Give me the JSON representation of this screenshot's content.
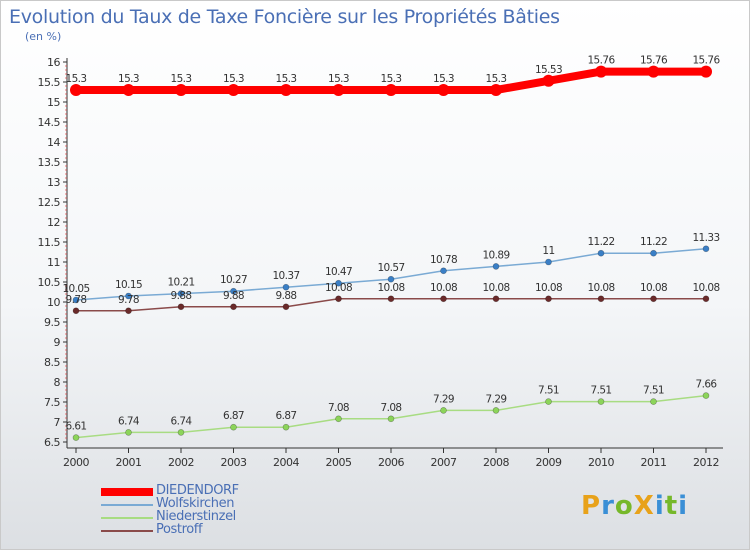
{
  "title": "Evolution du Taux de Taxe Foncière sur les Propriétés Bâties",
  "subtitle": "(en %)",
  "logo": {
    "text": "ProXiti",
    "letters": [
      {
        "ch": "P",
        "color": "#e8a21a"
      },
      {
        "ch": "r",
        "color": "#3a8fd6"
      },
      {
        "ch": "o",
        "color": "#76b82a"
      },
      {
        "ch": "X",
        "color": "#e8a21a"
      },
      {
        "ch": "i",
        "color": "#3a8fd6"
      },
      {
        "ch": "t",
        "color": "#76b82a"
      },
      {
        "ch": "i",
        "color": "#3a8fd6"
      }
    ]
  },
  "chart_data": {
    "type": "line",
    "title": "Evolution du Taux de Taxe Foncière sur les Propriétés Bâties",
    "ylabel": "(en %)",
    "xlabel": "",
    "x": [
      "2000",
      "2001",
      "2002",
      "2003",
      "2004",
      "2005",
      "2006",
      "2007",
      "2008",
      "2009",
      "2010",
      "2011",
      "2012"
    ],
    "ylim": [
      6.5,
      16
    ],
    "yticks": [
      "6.5",
      "7",
      "7.5",
      "8",
      "8.5",
      "9",
      "9.5",
      "10",
      "10.5",
      "11",
      "11.5",
      "12",
      "12.5",
      "13",
      "13.5",
      "14",
      "14.5",
      "15",
      "15.5",
      "16"
    ],
    "grid": false,
    "legend_position": "bottom-left",
    "series": [
      {
        "name": "DIEDENDORF",
        "color": "#ff0000",
        "line_width": 8,
        "marker_radius": 6,
        "values": [
          15.3,
          15.3,
          15.3,
          15.3,
          15.3,
          15.3,
          15.3,
          15.3,
          15.3,
          15.53,
          15.76,
          15.76,
          15.76
        ],
        "labels": [
          "15.3",
          "15.3",
          "15.3",
          "15.3",
          "15.3",
          "15.3",
          "15.3",
          "15.3",
          "15.3",
          "15.53",
          "15.76",
          "15.76",
          "15.76"
        ]
      },
      {
        "name": "Wolfskirchen",
        "color": "#7aaad4",
        "marker_color": "#3a7fc6",
        "line_width": 1.5,
        "marker_radius": 3,
        "values": [
          10.05,
          10.15,
          10.21,
          10.27,
          10.37,
          10.47,
          10.57,
          10.78,
          10.89,
          11,
          11.22,
          11.22,
          11.33
        ],
        "labels": [
          "10.05",
          "10.15",
          "10.21",
          "10.27",
          "10.37",
          "10.47",
          "10.57",
          "10.78",
          "10.89",
          "11",
          "11.22",
          "11.22",
          "11.33"
        ]
      },
      {
        "name": "Niederstinzel",
        "color": "#a8dc82",
        "marker_color": "#8cd45a",
        "line_width": 1.5,
        "marker_radius": 3,
        "values": [
          6.61,
          6.74,
          6.74,
          6.87,
          6.87,
          7.08,
          7.08,
          7.29,
          7.29,
          7.51,
          7.51,
          7.51,
          7.66
        ],
        "labels": [
          "6.61",
          "6.74",
          "6.74",
          "6.87",
          "6.87",
          "7.08",
          "7.08",
          "7.29",
          "7.29",
          "7.51",
          "7.51",
          "7.51",
          "7.66"
        ]
      },
      {
        "name": "Postroff",
        "color": "#8a4a4a",
        "marker_color": "#6a2a2a",
        "line_width": 1.5,
        "marker_radius": 3,
        "values": [
          9.78,
          9.78,
          9.88,
          9.88,
          9.88,
          10.08,
          10.08,
          10.08,
          10.08,
          10.08,
          10.08,
          10.08,
          10.08
        ],
        "labels": [
          "9.78",
          "9.78",
          "9.88",
          "9.88",
          "9.88",
          "10.08",
          "10.08",
          "10.08",
          "10.08",
          "10.08",
          "10.08",
          "10.08",
          "10.08"
        ]
      }
    ]
  }
}
